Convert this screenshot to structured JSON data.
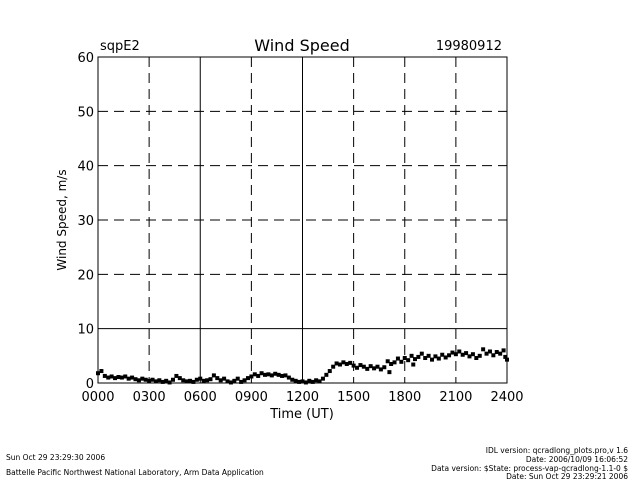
{
  "header": {
    "site": "sqpE2",
    "date": "19980912"
  },
  "footer": {
    "run_time": "Sun Oct 29 23:29:30 2006",
    "institution": "Battelle Pacific Northwest National Laboratory, Arm Data Application",
    "idl_version": "IDL version: qcradlong_plots.pro,v 1.6",
    "idl_date": "Date: 2006/10/09 16:06:52",
    "data_version": "Data version: $State: process-vap-qcradlong-1.1-0 $",
    "data_date": "Date: Sun Oct 29 23:29:21 2006"
  },
  "chart_data": {
    "type": "scatter",
    "title": "Wind Speed",
    "xlabel": "Time (UT)",
    "ylabel": "Wind Speed, m/s",
    "xlim": [
      0,
      2400
    ],
    "ylim": [
      0,
      60
    ],
    "x_ticks": [
      "0000",
      "0300",
      "0600",
      "0900",
      "1200",
      "1500",
      "1800",
      "2100",
      "2400"
    ],
    "y_ticks": [
      "0",
      "10",
      "20",
      "30",
      "40",
      "50",
      "60"
    ],
    "grid": true,
    "legend": "none",
    "series": [
      {
        "color": "#000000",
        "points": [
          [
            0,
            1.8
          ],
          [
            20,
            2.2
          ],
          [
            40,
            1.3
          ],
          [
            60,
            1.0
          ],
          [
            80,
            1.2
          ],
          [
            100,
            0.9
          ],
          [
            120,
            1.1
          ],
          [
            140,
            1.0
          ],
          [
            160,
            1.2
          ],
          [
            180,
            0.8
          ],
          [
            200,
            1.0
          ],
          [
            220,
            0.7
          ],
          [
            240,
            0.5
          ],
          [
            260,
            0.8
          ],
          [
            280,
            0.6
          ],
          [
            300,
            0.4
          ],
          [
            320,
            0.6
          ],
          [
            340,
            0.3
          ],
          [
            360,
            0.5
          ],
          [
            380,
            0.2
          ],
          [
            400,
            0.4
          ],
          [
            420,
            0.1
          ],
          [
            440,
            0.6
          ],
          [
            460,
            1.3
          ],
          [
            480,
            0.9
          ],
          [
            500,
            0.5
          ],
          [
            520,
            0.3
          ],
          [
            540,
            0.4
          ],
          [
            560,
            0.2
          ],
          [
            580,
            0.6
          ],
          [
            600,
            0.8
          ],
          [
            620,
            0.4
          ],
          [
            640,
            0.5
          ],
          [
            660,
            0.7
          ],
          [
            680,
            1.4
          ],
          [
            700,
            0.9
          ],
          [
            720,
            0.5
          ],
          [
            740,
            0.8
          ],
          [
            760,
            0.3
          ],
          [
            780,
            0.1
          ],
          [
            800,
            0.4
          ],
          [
            820,
            0.8
          ],
          [
            840,
            0.2
          ],
          [
            860,
            0.5
          ],
          [
            880,
            0.9
          ],
          [
            900,
            1.2
          ],
          [
            920,
            1.6
          ],
          [
            940,
            1.3
          ],
          [
            960,
            1.8
          ],
          [
            980,
            1.5
          ],
          [
            1000,
            1.6
          ],
          [
            1020,
            1.4
          ],
          [
            1040,
            1.7
          ],
          [
            1060,
            1.5
          ],
          [
            1080,
            1.3
          ],
          [
            1100,
            1.4
          ],
          [
            1120,
            1.0
          ],
          [
            1140,
            0.6
          ],
          [
            1160,
            0.4
          ],
          [
            1180,
            0.2
          ],
          [
            1200,
            0.3
          ],
          [
            1220,
            0.1
          ],
          [
            1240,
            0.4
          ],
          [
            1260,
            0.2
          ],
          [
            1280,
            0.5
          ],
          [
            1300,
            0.3
          ],
          [
            1320,
            0.8
          ],
          [
            1340,
            1.5
          ],
          [
            1360,
            2.2
          ],
          [
            1380,
            3.0
          ],
          [
            1400,
            3.6
          ],
          [
            1420,
            3.4
          ],
          [
            1440,
            3.8
          ],
          [
            1460,
            3.5
          ],
          [
            1480,
            3.7
          ],
          [
            1500,
            3.2
          ],
          [
            1520,
            2.8
          ],
          [
            1540,
            3.3
          ],
          [
            1560,
            3.0
          ],
          [
            1580,
            2.6
          ],
          [
            1600,
            3.1
          ],
          [
            1620,
            2.7
          ],
          [
            1640,
            3.0
          ],
          [
            1660,
            2.5
          ],
          [
            1680,
            2.9
          ],
          [
            1700,
            4.0
          ],
          [
            1710,
            2.0
          ],
          [
            1720,
            3.5
          ],
          [
            1740,
            3.8
          ],
          [
            1760,
            4.5
          ],
          [
            1780,
            3.9
          ],
          [
            1800,
            4.6
          ],
          [
            1820,
            4.2
          ],
          [
            1840,
            5.0
          ],
          [
            1850,
            3.4
          ],
          [
            1860,
            4.4
          ],
          [
            1880,
            4.8
          ],
          [
            1900,
            5.4
          ],
          [
            1920,
            4.6
          ],
          [
            1940,
            5.0
          ],
          [
            1960,
            4.3
          ],
          [
            1980,
            4.9
          ],
          [
            2000,
            4.5
          ],
          [
            2020,
            5.2
          ],
          [
            2040,
            4.7
          ],
          [
            2060,
            5.1
          ],
          [
            2080,
            5.6
          ],
          [
            2100,
            5.3
          ],
          [
            2120,
            5.8
          ],
          [
            2140,
            5.2
          ],
          [
            2160,
            5.5
          ],
          [
            2180,
            4.9
          ],
          [
            2200,
            5.3
          ],
          [
            2220,
            4.6
          ],
          [
            2240,
            5.0
          ],
          [
            2260,
            6.2
          ],
          [
            2280,
            5.4
          ],
          [
            2300,
            5.8
          ],
          [
            2320,
            5.1
          ],
          [
            2340,
            5.7
          ],
          [
            2360,
            5.4
          ],
          [
            2380,
            6.0
          ],
          [
            2390,
            4.8
          ],
          [
            2400,
            4.3
          ]
        ]
      }
    ]
  }
}
